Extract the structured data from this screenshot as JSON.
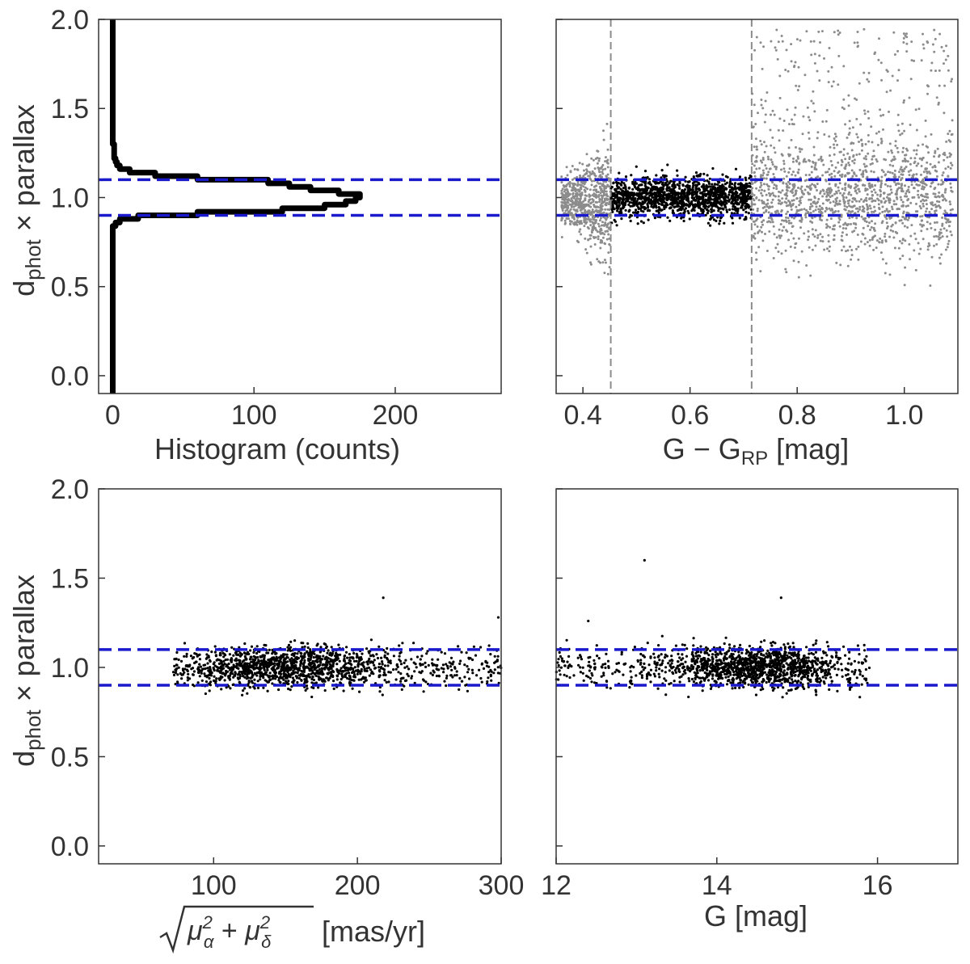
{
  "figure": {
    "ylabel_main": "d",
    "ylabel_sub": "phot",
    "ylabel_rest": " × parallax"
  },
  "chart_data": [
    {
      "id": "hist",
      "type": "line",
      "title": "",
      "xlabel": "Histogram (counts)",
      "ylabel": "d_phot × parallax",
      "xlim": [
        -10,
        275
      ],
      "ylim": [
        -0.1,
        2.0
      ],
      "xticks": [
        0,
        100,
        200
      ],
      "xtick_labels": [
        "0",
        "100",
        "200"
      ],
      "yticks": [
        0.0,
        0.5,
        1.0,
        1.5,
        2.0
      ],
      "ytick_labels": [
        "0.0",
        "0.5",
        "1.0",
        "1.5",
        "2.0"
      ],
      "hlines": [
        0.9,
        1.1
      ],
      "series": [
        {
          "name": "histogram",
          "style": "step",
          "color": "#000000",
          "points": [
            [
              0,
              -0.1
            ],
            [
              0,
              0.84
            ],
            [
              2,
              0.84
            ],
            [
              2,
              0.86
            ],
            [
              5,
              0.86
            ],
            [
              5,
              0.88
            ],
            [
              18,
              0.88
            ],
            [
              18,
              0.9
            ],
            [
              60,
              0.9
            ],
            [
              60,
              0.92
            ],
            [
              120,
              0.92
            ],
            [
              120,
              0.94
            ],
            [
              150,
              0.94
            ],
            [
              150,
              0.96
            ],
            [
              165,
              0.96
            ],
            [
              165,
              0.98
            ],
            [
              172,
              0.98
            ],
            [
              172,
              1.0
            ],
            [
              175,
              1.0
            ],
            [
              175,
              1.02
            ],
            [
              160,
              1.02
            ],
            [
              160,
              1.04
            ],
            [
              140,
              1.04
            ],
            [
              140,
              1.06
            ],
            [
              125,
              1.06
            ],
            [
              125,
              1.08
            ],
            [
              110,
              1.08
            ],
            [
              110,
              1.1
            ],
            [
              60,
              1.1
            ],
            [
              60,
              1.12
            ],
            [
              30,
              1.12
            ],
            [
              30,
              1.14
            ],
            [
              12,
              1.14
            ],
            [
              12,
              1.16
            ],
            [
              5,
              1.16
            ],
            [
              5,
              1.18
            ],
            [
              3,
              1.18
            ],
            [
              3,
              1.2
            ],
            [
              2,
              1.2
            ],
            [
              2,
              1.22
            ],
            [
              1,
              1.22
            ],
            [
              1,
              1.3
            ],
            [
              0,
              1.3
            ],
            [
              0,
              2.0
            ]
          ]
        }
      ]
    },
    {
      "id": "color",
      "type": "scatter",
      "title": "",
      "xlabel_main": "G − G",
      "xlabel_sub": "RP",
      "xlabel_rest": " [mag]",
      "xlim": [
        0.35,
        1.1
      ],
      "ylim": [
        -0.1,
        2.0
      ],
      "xticks": [
        0.4,
        0.6,
        0.8,
        1.0
      ],
      "xtick_labels": [
        "0.4",
        "0.6",
        "0.8",
        "1.0"
      ],
      "yticks": [
        0.0,
        0.5,
        1.0,
        1.5,
        2.0
      ],
      "hlines": [
        0.9,
        1.1
      ],
      "vlines": [
        0.452,
        0.715
      ],
      "colors": {
        "selected": "#000000",
        "rejected": "#8c8c8c",
        "hline": "#1a1acc",
        "vline": "#8c8c8c"
      },
      "series": [
        {
          "name": "rejected-blue",
          "color": "#8c8c8c",
          "n": 700,
          "x_range": [
            0.36,
            0.452
          ],
          "y_mean": 0.97,
          "y_sd": 0.09
        },
        {
          "name": "selected",
          "color": "#000000",
          "n": 1400,
          "x_range": [
            0.452,
            0.715
          ],
          "y_mean": 1.0,
          "y_sd": 0.055
        },
        {
          "name": "rejected-red",
          "color": "#8c8c8c",
          "n": 1600,
          "x_range": [
            0.715,
            1.09
          ],
          "y_mean": 1.0,
          "y_sd": 0.16
        }
      ]
    },
    {
      "id": "pm",
      "type": "scatter",
      "title": "",
      "xlabel": "√(μα² + μδ²) [mas/yr]",
      "xlabel_units": "[mas/yr]",
      "xlim": [
        20,
        300
      ],
      "ylim": [
        -0.1,
        2.0
      ],
      "xticks": [
        100,
        200,
        300
      ],
      "xtick_labels": [
        "100",
        "200",
        "300"
      ],
      "yticks": [
        0.0,
        0.5,
        1.0,
        1.5,
        2.0
      ],
      "ytick_labels": [
        "0.0",
        "0.5",
        "1.0",
        "1.5",
        "2.0"
      ],
      "hlines": [
        0.9,
        1.1
      ],
      "series": [
        {
          "name": "stars",
          "color": "#000000",
          "n": 1500,
          "x_range": [
            72,
            300
          ],
          "x_peak": 150,
          "y_mean": 1.0,
          "y_sd": 0.055
        }
      ]
    },
    {
      "id": "gmag",
      "type": "scatter",
      "title": "",
      "xlabel": "G [mag]",
      "xlim": [
        12,
        17
      ],
      "ylim": [
        -0.1,
        2.0
      ],
      "xticks": [
        12,
        14,
        16
      ],
      "xtick_labels": [
        "12",
        "14",
        "16"
      ],
      "yticks": [
        0.0,
        0.5,
        1.0,
        1.5,
        2.0
      ],
      "hlines": [
        0.9,
        1.1
      ],
      "series": [
        {
          "name": "stars",
          "color": "#000000",
          "n": 1500,
          "x_range": [
            12.0,
            15.9
          ],
          "x_peak": 14.5,
          "y_mean": 1.0,
          "y_sd": 0.055
        }
      ]
    }
  ]
}
